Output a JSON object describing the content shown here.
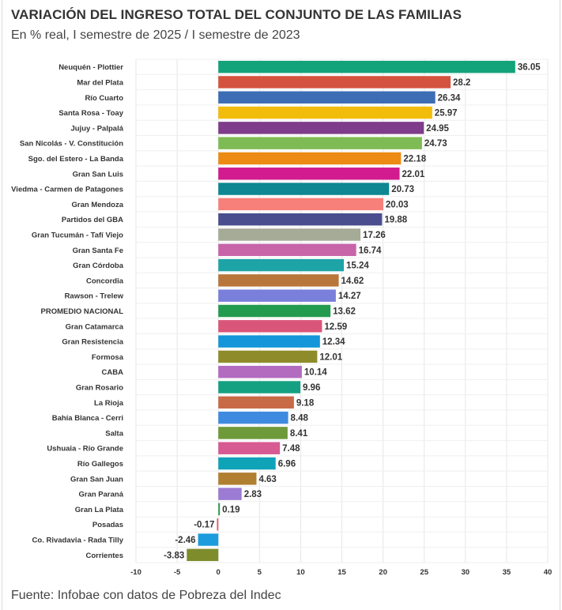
{
  "header": {
    "title": "VARIACIÓN DEL INGRESO TOTAL DEL CONJUNTO DE LAS FAMILIAS",
    "subtitle": "En % real, I semestre de 2025 / I semestre de 2023"
  },
  "footer": {
    "source": "Fuente: Infobae con datos de Pobreza del Indec"
  },
  "chart_data": {
    "type": "bar",
    "orientation": "horizontal",
    "title": "VARIACIÓN DEL INGRESO TOTAL DEL CONJUNTO DE LAS FAMILIAS",
    "subtitle": "En % real, I semestre de 2025 / I semestre de 2023",
    "xlim": [
      -10,
      40
    ],
    "xticks": [
      -10,
      -5,
      0,
      5,
      10,
      15,
      20,
      25,
      30,
      35,
      40
    ],
    "grid": "vertical",
    "categories": [
      "Neuquén - Plottier",
      "Mar del Plata",
      "Río Cuarto",
      "Santa Rosa - Toay",
      "Jujuy - Palpalá",
      "San Nicolás - V. Constitución",
      "Sgo. del Estero - La Banda",
      "Gran San Luis",
      "Viedma - Carmen de Patagones",
      "Gran Mendoza",
      "Partidos del GBA",
      "Gran Tucumán - Tafí Viejo",
      "Gran Santa Fe",
      "Gran Córdoba",
      "Concordia",
      "Rawson - Trelew",
      "PROMEDIO NACIONAL",
      "Gran Catamarca",
      "Gran Resistencia",
      "Formosa",
      "CABA",
      "Gran Rosario",
      "La Rioja",
      "Bahía Blanca - Cerri",
      "Salta",
      "Ushuaia - Río Grande",
      "Río Gallegos",
      "Gran San Juan",
      "Gran Paraná",
      "Gran La Plata",
      "Posadas",
      "Co. Rivadavia - Rada Tilly",
      "Corrientes"
    ],
    "values": [
      36.05,
      28.2,
      26.34,
      25.97,
      24.95,
      24.73,
      22.18,
      22.01,
      20.73,
      20.03,
      19.88,
      17.26,
      16.74,
      15.24,
      14.62,
      14.27,
      13.62,
      12.59,
      12.34,
      12.01,
      10.14,
      9.96,
      9.18,
      8.48,
      8.41,
      7.48,
      6.96,
      4.63,
      2.83,
      0.19,
      -0.17,
      -2.46,
      -3.83
    ],
    "value_labels": [
      "36.05",
      "28.2",
      "26.34",
      "25.97",
      "24.95",
      "24.73",
      "22.18",
      "22.01",
      "20.73",
      "20.03",
      "19.88",
      "17.26",
      "16.74",
      "15.24",
      "14.62",
      "14.27",
      "13.62",
      "12.59",
      "12.34",
      "12.01",
      "10.14",
      "9.96",
      "9.18",
      "8.48",
      "8.41",
      "7.48",
      "6.96",
      "4.63",
      "2.83",
      "0.19",
      "-0.17",
      "-2.46",
      "-3.83"
    ],
    "colors": [
      "#12a37a",
      "#d4533e",
      "#3d6db5",
      "#f2bd0a",
      "#7e3c8a",
      "#7fbb54",
      "#ec8a14",
      "#d21b8e",
      "#0e8792",
      "#f8807a",
      "#4a4d8e",
      "#a6ab98",
      "#c765a8",
      "#1ea3a7",
      "#b8763a",
      "#7a7fdc",
      "#239b4e",
      "#d9567a",
      "#1596d8",
      "#8e8c2a",
      "#b36bc0",
      "#13a181",
      "#c96a46",
      "#3e8ae0",
      "#6e9a3a",
      "#d85a92",
      "#0fa3b8",
      "#b07f30",
      "#9b7bd3",
      "#2d9a4a",
      "#e8576b",
      "#1c9cdc",
      "#7e8c2c"
    ]
  }
}
